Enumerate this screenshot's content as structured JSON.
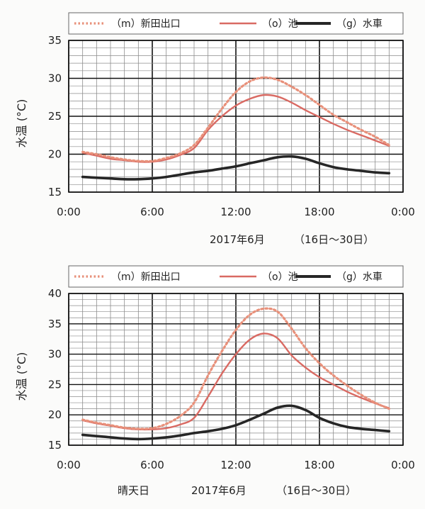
{
  "colors": {
    "m": "#e8907a",
    "o": "#d96a63",
    "g": "#262626",
    "grid_minor": "#8c8c8c",
    "grid_major": "#111111"
  },
  "chart_data": [
    {
      "type": "line",
      "xlabel": "",
      "ylabel": "水温 (°C)",
      "caption_line": "2017年6月",
      "caption_range": "（16日～30日）",
      "caption_prefix": "",
      "xlim": [
        0,
        24
      ],
      "ylim": [
        15,
        35
      ],
      "y_major_step": 5,
      "xtick_labels": [
        "0:00",
        "6:00",
        "12:00",
        "18:00",
        "0:00"
      ],
      "ytick_labels": [
        "15",
        "20",
        "25",
        "30",
        "35"
      ],
      "legend": [
        {
          "key": "m",
          "label": "（m）新田出口",
          "style": "dotted"
        },
        {
          "key": "o",
          "label": "（o）池",
          "style": "solid"
        },
        {
          "key": "g",
          "label": "（g）水車",
          "style": "thick"
        }
      ],
      "series": [
        {
          "name": "（m）新田出口",
          "key": "m",
          "points": [
            [
              1,
              20.3
            ],
            [
              2,
              20
            ],
            [
              3,
              19.6
            ],
            [
              4,
              19.3
            ],
            [
              5,
              19.1
            ],
            [
              6,
              19.1
            ],
            [
              7,
              19.5
            ],
            [
              8,
              20.1
            ],
            [
              9,
              21.2
            ],
            [
              10,
              23.5
            ],
            [
              11,
              26
            ],
            [
              12,
              28.2
            ],
            [
              13,
              29.6
            ],
            [
              14,
              30.1
            ],
            [
              15,
              29.8
            ],
            [
              16,
              28.9
            ],
            [
              17,
              27.8
            ],
            [
              18,
              26.5
            ],
            [
              19,
              25.2
            ],
            [
              20,
              24.2
            ],
            [
              21,
              23.2
            ],
            [
              22,
              22.3
            ],
            [
              23,
              21.2
            ]
          ]
        },
        {
          "name": "（o）池",
          "key": "o",
          "points": [
            [
              1,
              20.2
            ],
            [
              2,
              19.8
            ],
            [
              3,
              19.4
            ],
            [
              4,
              19.2
            ],
            [
              5,
              19
            ],
            [
              6,
              19
            ],
            [
              7,
              19.3
            ],
            [
              8,
              19.9
            ],
            [
              9,
              20.8
            ],
            [
              10,
              23.2
            ],
            [
              11,
              25
            ],
            [
              12,
              26.4
            ],
            [
              13,
              27.3
            ],
            [
              14,
              27.8
            ],
            [
              15,
              27.6
            ],
            [
              16,
              26.8
            ],
            [
              17,
              25.8
            ],
            [
              18,
              24.9
            ],
            [
              19,
              24
            ],
            [
              20,
              23.2
            ],
            [
              21,
              22.5
            ],
            [
              22,
              21.8
            ],
            [
              23,
              21.1
            ]
          ]
        },
        {
          "name": "（g）水車",
          "key": "g",
          "points": [
            [
              1,
              17
            ],
            [
              2,
              16.9
            ],
            [
              3,
              16.8
            ],
            [
              4,
              16.7
            ],
            [
              5,
              16.7
            ],
            [
              6,
              16.8
            ],
            [
              7,
              17
            ],
            [
              8,
              17.3
            ],
            [
              9,
              17.6
            ],
            [
              10,
              17.8
            ],
            [
              11,
              18.1
            ],
            [
              12,
              18.4
            ],
            [
              13,
              18.8
            ],
            [
              14,
              19.2
            ],
            [
              15,
              19.6
            ],
            [
              16,
              19.7
            ],
            [
              17,
              19.4
            ],
            [
              18,
              18.8
            ],
            [
              19,
              18.3
            ],
            [
              20,
              18
            ],
            [
              21,
              17.8
            ],
            [
              22,
              17.6
            ],
            [
              23,
              17.5
            ]
          ]
        }
      ]
    },
    {
      "type": "line",
      "xlabel": "",
      "ylabel": "水温 (°C)",
      "caption_line": "2017年6月",
      "caption_range": "（16日～30日）",
      "caption_prefix": "晴天日",
      "xlim": [
        0,
        24
      ],
      "ylim": [
        15,
        40
      ],
      "y_major_step": 5,
      "xtick_labels": [
        "0:00",
        "6:00",
        "12:00",
        "18:00",
        "0:00"
      ],
      "ytick_labels": [
        "15",
        "20",
        "25",
        "30",
        "35",
        "40"
      ],
      "legend": [
        {
          "key": "m",
          "label": "（m）新田出口",
          "style": "dotted"
        },
        {
          "key": "o",
          "label": "（o）池",
          "style": "solid"
        },
        {
          "key": "g",
          "label": "（g）水車",
          "style": "thick"
        }
      ],
      "series": [
        {
          "name": "（m）新田出口",
          "key": "m",
          "points": [
            [
              1,
              19.2
            ],
            [
              2,
              18.7
            ],
            [
              3,
              18.3
            ],
            [
              4,
              17.9
            ],
            [
              5,
              17.7
            ],
            [
              6,
              17.8
            ],
            [
              7,
              18.5
            ],
            [
              8,
              19.8
            ],
            [
              9,
              22
            ],
            [
              10,
              26.5
            ],
            [
              11,
              30.5
            ],
            [
              12,
              34
            ],
            [
              13,
              36.5
            ],
            [
              14,
              37.5
            ],
            [
              15,
              37
            ],
            [
              16,
              34.2
            ],
            [
              17,
              31
            ],
            [
              18,
              28.5
            ],
            [
              19,
              26.5
            ],
            [
              20,
              24.8
            ],
            [
              21,
              23.3
            ],
            [
              22,
              22
            ],
            [
              23,
              21
            ]
          ]
        },
        {
          "name": "（o）池",
          "key": "o",
          "points": [
            [
              1,
              19.1
            ],
            [
              2,
              18.6
            ],
            [
              3,
              18.2
            ],
            [
              4,
              17.8
            ],
            [
              5,
              17.6
            ],
            [
              6,
              17.6
            ],
            [
              7,
              17.8
            ],
            [
              8,
              18.4
            ],
            [
              9,
              19.5
            ],
            [
              10,
              23
            ],
            [
              11,
              26.8
            ],
            [
              12,
              30
            ],
            [
              13,
              32.4
            ],
            [
              14,
              33.4
            ],
            [
              15,
              32.6
            ],
            [
              16,
              29.8
            ],
            [
              17,
              27.8
            ],
            [
              18,
              26.2
            ],
            [
              19,
              25
            ],
            [
              20,
              23.8
            ],
            [
              21,
              22.8
            ],
            [
              22,
              21.9
            ],
            [
              23,
              21.1
            ]
          ]
        },
        {
          "name": "（g）水車",
          "key": "g",
          "points": [
            [
              1,
              16.7
            ],
            [
              2,
              16.5
            ],
            [
              3,
              16.3
            ],
            [
              4,
              16.1
            ],
            [
              5,
              16
            ],
            [
              6,
              16.1
            ],
            [
              7,
              16.3
            ],
            [
              8,
              16.6
            ],
            [
              9,
              17
            ],
            [
              10,
              17.3
            ],
            [
              11,
              17.7
            ],
            [
              12,
              18.3
            ],
            [
              13,
              19.2
            ],
            [
              14,
              20.2
            ],
            [
              15,
              21.2
            ],
            [
              16,
              21.5
            ],
            [
              17,
              20.8
            ],
            [
              18,
              19.5
            ],
            [
              19,
              18.6
            ],
            [
              20,
              18
            ],
            [
              21,
              17.7
            ],
            [
              22,
              17.5
            ],
            [
              23,
              17.3
            ]
          ]
        }
      ]
    }
  ]
}
